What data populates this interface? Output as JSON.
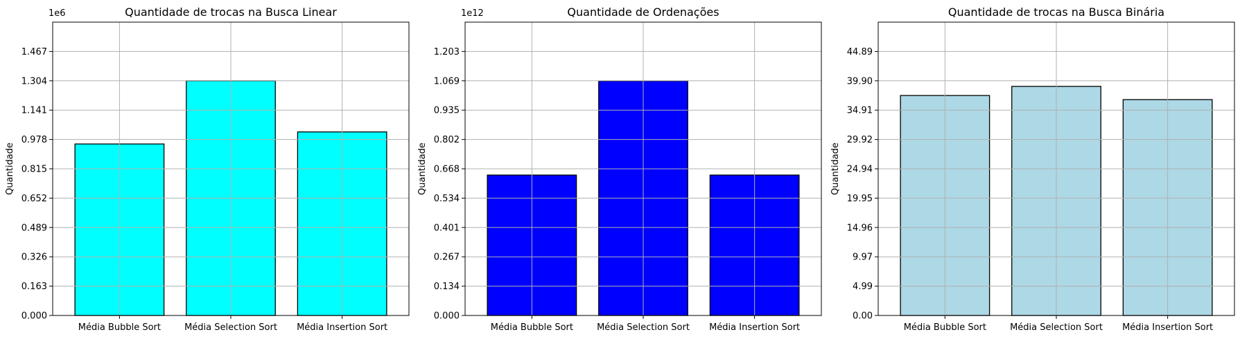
{
  "chart_data": [
    {
      "type": "bar",
      "title": "Quantidade de trocas na Busca Linear",
      "xlabel": "",
      "ylabel": "Quantidade",
      "offset_text": "1e6",
      "categories": [
        "Média Bubble Sort",
        "Média Selection Sort",
        "Média Insertion Sort"
      ],
      "values": [
        0.953,
        1.304,
        1.02
      ],
      "ylim": [
        0,
        1.63
      ],
      "yticks": [
        "0.000",
        "0.163",
        "0.326",
        "0.489",
        "0.652",
        "0.815",
        "0.978",
        "1.141",
        "1.304",
        "1.467"
      ],
      "bar_color": "#00ffff",
      "grid": true
    },
    {
      "type": "bar",
      "title": "Quantidade de Ordenações",
      "xlabel": "",
      "ylabel": "Quantidade",
      "offset_text": "1e12",
      "categories": [
        "Média Bubble Sort",
        "Média Selection Sort",
        "Média Insertion Sort"
      ],
      "values": [
        0.64,
        1.069,
        0.64
      ],
      "ylim": [
        0,
        1.337
      ],
      "yticks": [
        "0.000",
        "0.134",
        "0.267",
        "0.401",
        "0.534",
        "0.668",
        "0.802",
        "0.935",
        "1.069",
        "1.203"
      ],
      "bar_color": "#0000ff",
      "grid": true
    },
    {
      "type": "bar",
      "title": "Quantidade de trocas na Busca Binária",
      "xlabel": "",
      "ylabel": "Quantidade",
      "offset_text": "",
      "categories": [
        "Média Bubble Sort",
        "Média Selection Sort",
        "Média Insertion Sort"
      ],
      "values": [
        37.4,
        38.95,
        36.7
      ],
      "ylim": [
        0,
        49.87
      ],
      "yticks": [
        "0.00",
        "4.99",
        "9.97",
        "14.96",
        "19.95",
        "24.94",
        "29.92",
        "34.91",
        "39.90",
        "44.89"
      ],
      "bar_color": "#add8e6",
      "grid": true
    }
  ]
}
